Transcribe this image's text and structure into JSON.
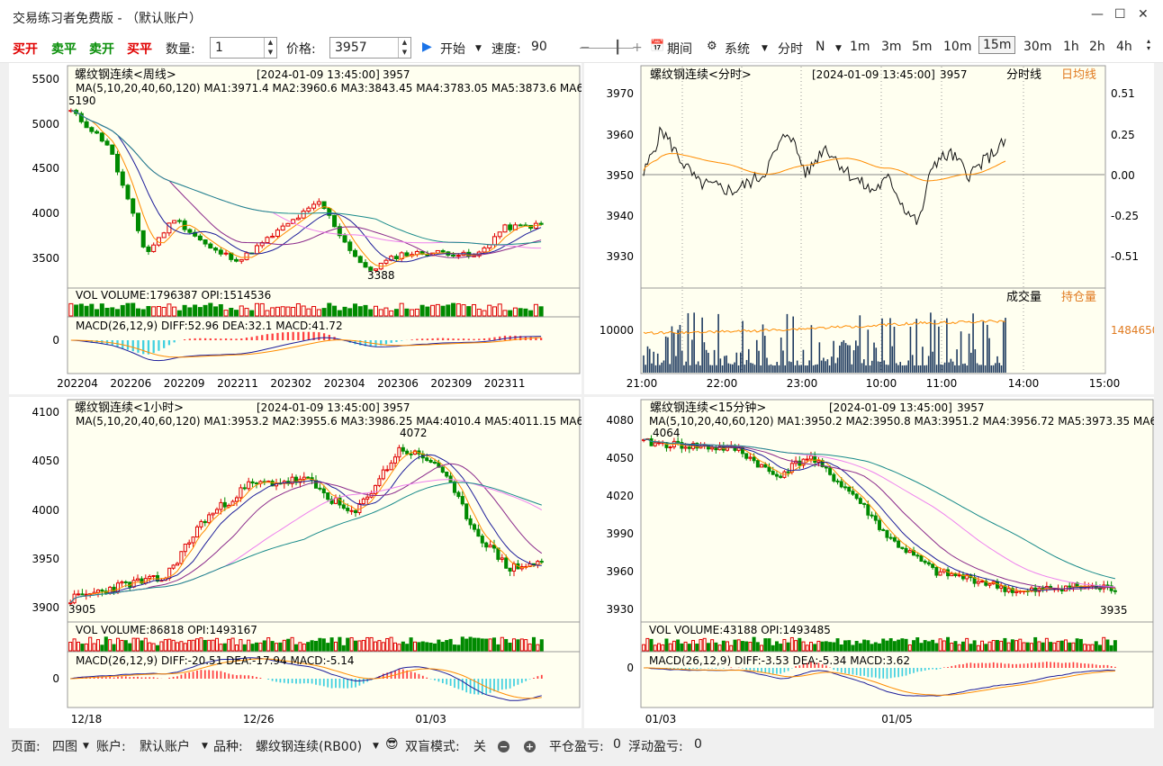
{
  "window": {
    "title": "交易练习者免费版 - （默认账户）"
  },
  "toolbar": {
    "buy_open": "买开",
    "sell_close": "卖平",
    "sell_open": "卖开",
    "buy_close": "买平",
    "qty_label": "数量:",
    "qty_value": "1",
    "price_label": "价格:",
    "price_value": "3957",
    "start": "开始",
    "speed_label": "速度:",
    "speed_value": "90",
    "period": "期间",
    "system": "系统",
    "fenshi": "分时",
    "n": "N",
    "timeframes": [
      "1m",
      "3m",
      "5m",
      "10m",
      "15m",
      "30m",
      "1h",
      "2h",
      "4h"
    ],
    "active_timeframe": "15m"
  },
  "colors": {
    "up": "#e00000",
    "down": "#008a00",
    "bg_chart": "#fffff0",
    "ma1": "#ff8c00",
    "ma2": "#1e1e9a",
    "ma3": "#8b2a8b",
    "ma4": "#ee82ee",
    "ma5": "#188a8a"
  },
  "panels": {
    "weekly": {
      "title": "螺纹钢连续<周线>",
      "time": "[2024-01-09 13:45:00]",
      "price": "3957",
      "ma": "MA(5,10,20,40,60,120)  MA1:3971.4  MA2:3960.6  MA3:3843.45  MA4:3783.05  MA5:3873.6  MA6:",
      "vol": "VOL  VOLUME:1796387  OPI:1514536",
      "macd": "MACD(26,12,9)  DIFF:52.96  DEA:32.1  MACD:41.72",
      "y_ticks": [
        "5500",
        "5000",
        "4500",
        "4000",
        "3500"
      ],
      "macd_zero": "0",
      "x_ticks": [
        "202204",
        "202206",
        "202209",
        "202211",
        "202302",
        "202304",
        "202306",
        "202309",
        "202311"
      ],
      "high_label": "5190",
      "low_label": "3388"
    },
    "intraday": {
      "title": "螺纹钢连续<分时>",
      "time": "[2024-01-09 13:45:00]",
      "price": "3957",
      "legend_line": "分时线",
      "legend_avg": "日均线",
      "y_ticks": [
        "3970",
        "3960",
        "3950",
        "3940",
        "3930"
      ],
      "y_pct": [
        "0.51",
        "0.25",
        "0.00",
        "-0.25",
        "-0.51"
      ],
      "vol_legend_a": "成交量",
      "vol_legend_b": "持仓量",
      "vol_tick": "10000",
      "opi_value": "1484650",
      "x_ticks": [
        "21:00",
        "22:00",
        "23:00",
        "10:00",
        "11:00",
        "14:00",
        "15:00"
      ]
    },
    "hourly": {
      "title": "螺纹钢连续<1小时>",
      "time": "[2024-01-09 13:45:00]",
      "price": "3957",
      "ma": "MA(5,10,20,40,60,120)  MA1:3953.2  MA2:3955.6  MA3:3986.25  MA4:4010.4  MA5:4011.15  MA6:",
      "vol": "VOL  VOLUME:86818  OPI:1493167",
      "macd": "MACD(26,12,9)  DIFF:-20.51  DEA:-17.94  MACD:-5.14",
      "y_ticks": [
        "4100",
        "4050",
        "4000",
        "3950",
        "3900"
      ],
      "macd_zero": "0",
      "x_ticks": [
        "12/18",
        "12/26",
        "01/03"
      ],
      "high_label": "4072",
      "low_label": "3905"
    },
    "min15": {
      "title": "螺纹钢连续<15分钟>",
      "time": "[2024-01-09 13:45:00]",
      "price": "3957",
      "ma": "MA(5,10,20,40,60,120)  MA1:3950.2  MA2:3950.8  MA3:3951.2  MA4:3956.72  MA5:3973.35  MA6:",
      "vol": "VOL  VOLUME:43188  OPI:1493485",
      "macd": "MACD(26,12,9)  DIFF:-3.53  DEA:-5.34  MACD:3.62",
      "y_ticks": [
        "4080",
        "4050",
        "4020",
        "3990",
        "3960",
        "3930"
      ],
      "macd_zero": "0",
      "x_ticks": [
        "01/03",
        "01/05"
      ],
      "high_label": "4064",
      "low_label": "3935"
    }
  },
  "chart_data": [
    {
      "type": "line",
      "title": "螺纹钢连续<周线>",
      "ylim": [
        3350,
        5600
      ],
      "x_ticks": [
        "202204",
        "202206",
        "202209",
        "202211",
        "202302",
        "202304",
        "202306",
        "202309",
        "202311"
      ]
    },
    {
      "type": "line",
      "title": "螺纹钢连续<分时>",
      "ylim": [
        3925,
        3975
      ],
      "x_ticks": [
        "21:00",
        "22:00",
        "23:00",
        "10:00",
        "11:00",
        "14:00",
        "15:00"
      ]
    },
    {
      "type": "line",
      "title": "螺纹钢连续<1小时>",
      "ylim": [
        3895,
        4105
      ],
      "x_ticks": [
        "12/18",
        "12/26",
        "01/03"
      ]
    },
    {
      "type": "line",
      "title": "螺纹钢连续<15分钟>",
      "ylim": [
        3925,
        4085
      ],
      "x_ticks": [
        "01/03",
        "01/05"
      ]
    }
  ],
  "status": {
    "page_label": "页面:",
    "page_value": "四图",
    "account_label": "账户:",
    "account_value": "默认账户",
    "symbol_label": "品种:",
    "symbol_value": "螺纹钢连续(RB00)",
    "blind_label": "双盲模式:",
    "blind_value": "关",
    "closed_pnl_label": "平仓盈亏:",
    "closed_pnl": "0",
    "float_pnl_label": "浮动盈亏:",
    "float_pnl": "0"
  }
}
